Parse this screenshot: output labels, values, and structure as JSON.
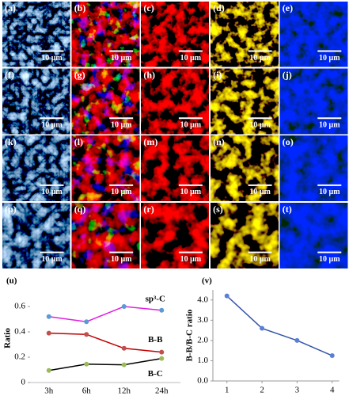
{
  "panels": [
    {
      "label": "(a)",
      "scale": "10 μm"
    },
    {
      "label": "(b)",
      "scale": "10 μm"
    },
    {
      "label": "(c)",
      "scale": "10 μm"
    },
    {
      "label": "(d)",
      "scale": "10 μm"
    },
    {
      "label": "(e)",
      "scale": "10 μm"
    },
    {
      "label": "(f)",
      "scale": "10 μm"
    },
    {
      "label": "(g)",
      "scale": "10 μm"
    },
    {
      "label": "(h)",
      "scale": "10 μm"
    },
    {
      "label": "(i)",
      "scale": "10 μm"
    },
    {
      "label": "(j)",
      "scale": "10 μm"
    },
    {
      "label": "(k)",
      "scale": "10 μm"
    },
    {
      "label": "(l)",
      "scale": "10 μm"
    },
    {
      "label": "(m)",
      "scale": "10 μm"
    },
    {
      "label": "(n)",
      "scale": "10 μm"
    },
    {
      "label": "(o)",
      "scale": "10 μm"
    },
    {
      "label": "(p)",
      "scale": "10 μm"
    },
    {
      "label": "(q)",
      "scale": "10 μm"
    },
    {
      "label": "(r)",
      "scale": "10 μm"
    },
    {
      "label": "(s)",
      "scale": "10 μm"
    },
    {
      "label": "(t)",
      "scale": "10 μm"
    }
  ],
  "chart_data": [
    {
      "type": "line",
      "label": "(u)",
      "y_label": "Ratio",
      "categories": [
        "3h",
        "6h",
        "12h",
        "24h"
      ],
      "series": [
        {
          "name": "sp³-C",
          "color": "#e020e0",
          "marker_color": "#5b9bd5",
          "values": [
            0.52,
            0.48,
            0.6,
            0.57
          ]
        },
        {
          "name": "B-B",
          "color": "#c00000",
          "marker_color": "#c0504d",
          "values": [
            0.39,
            0.38,
            0.27,
            0.24
          ]
        },
        {
          "name": "B-C",
          "color": "#000000",
          "marker_color": "#9bbb59",
          "values": [
            0.095,
            0.145,
            0.14,
            0.19
          ]
        }
      ],
      "ylim": [
        0,
        0.7
      ],
      "yticks": [
        0,
        0.2,
        0.4,
        0.6
      ],
      "grid": false
    },
    {
      "type": "scatterline",
      "label": "(v)",
      "y_label": "B-B/B-C ratio",
      "x": [
        1,
        2,
        3,
        4
      ],
      "series": [
        {
          "color": "#3355aa",
          "marker_color": "#5b7fd5",
          "values": [
            4.2,
            2.6,
            2.0,
            1.25
          ]
        }
      ],
      "xlim": [
        0.6,
        4.2
      ],
      "xticks": [
        1,
        2,
        3,
        4
      ],
      "ylim": [
        0,
        4.5
      ],
      "yticks": [
        {
          "value": 0,
          "label": "0.0"
        },
        {
          "value": 1,
          "label": "1.0"
        },
        {
          "value": 2,
          "label": "2.0"
        },
        {
          "value": 3,
          "label": "3.0"
        },
        {
          "value": 4,
          "label": "4.0"
        }
      ],
      "grid": false
    }
  ]
}
